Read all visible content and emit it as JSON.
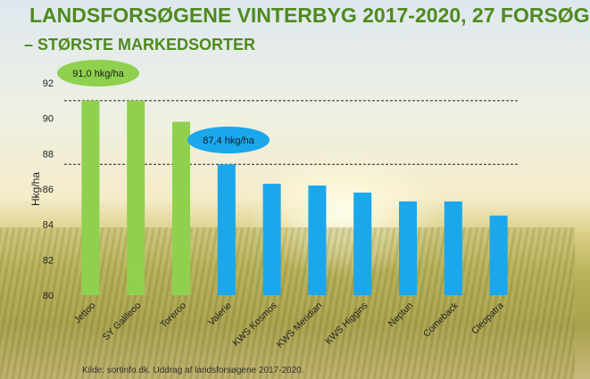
{
  "title": "LANDSFORSØGENE VINTERBYG 2017-2020, 27 FORSØG",
  "subtitle": "– STØRSTE MARKEDSORTER",
  "source": "Kilde: sortinfo.dk. Uddrag af landsforsøgene 2017-2020.",
  "colors": {
    "green": "#8fd14f",
    "blue": "#1aa7ec",
    "title": "#4f8a1e"
  },
  "chart_data": {
    "type": "bar",
    "categories": [
      "Jettoo",
      "SY Galileoo",
      "Toreroo",
      "Valerie",
      "KWS Kosmos",
      "KWS Meridian",
      "KWS Higgins",
      "Neptun",
      "Comeback",
      "Cleopatra"
    ],
    "values": [
      91.0,
      91.0,
      89.8,
      87.4,
      86.3,
      86.2,
      85.8,
      85.3,
      85.3,
      84.5
    ],
    "groups": [
      "green",
      "green",
      "green",
      "blue",
      "blue",
      "blue",
      "blue",
      "blue",
      "blue",
      "blue"
    ],
    "ylabel": "Hkg/ha",
    "ylim": [
      80,
      92
    ],
    "yticks": [
      80,
      82,
      84,
      86,
      88,
      90,
      92
    ],
    "reference_lines": [
      91.0,
      87.4
    ],
    "annotations": [
      {
        "text": "91,0 hkg/ha",
        "value": 91.0,
        "group": "green"
      },
      {
        "text": "87,4 hkg/ha",
        "value": 87.4,
        "group": "blue"
      }
    ],
    "grid": false
  }
}
